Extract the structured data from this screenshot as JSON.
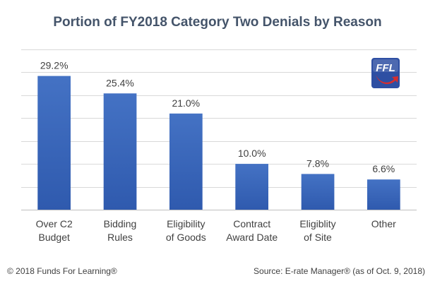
{
  "chart_data": {
    "type": "bar",
    "title": "Portion of FY2018 Category Two Denials by Reason",
    "categories": [
      [
        "Over C2",
        "Budget"
      ],
      [
        "Bidding",
        "Rules"
      ],
      [
        "Eligibility",
        "of Goods"
      ],
      [
        "Contract",
        "Award Date"
      ],
      [
        "Eligiblity",
        "of Site"
      ],
      [
        "Other"
      ]
    ],
    "values": [
      29.2,
      25.4,
      21.0,
      10.0,
      7.8,
      6.6
    ],
    "value_labels": [
      "29.2%",
      "25.4%",
      "21.0%",
      "10.0%",
      "7.8%",
      "6.6%"
    ],
    "ylim": [
      0,
      35
    ],
    "gridlines": [
      0,
      5,
      10,
      15,
      20,
      25,
      30,
      35
    ],
    "xlabel": "",
    "ylabel": "",
    "grid": true,
    "legend": "none",
    "bar_color_top": "#4472C4",
    "bar_color_bottom": "#2F5AAE"
  },
  "logo": {
    "text": "FFL",
    "icon": "ffl-logo-icon",
    "background": "#2E4FA3",
    "arrow_color": "#D62E2E"
  },
  "footer": {
    "copyright": "© 2018 Funds For Learning®",
    "source": "Source: E-rate Manager® (as of Oct. 9, 2018)"
  }
}
